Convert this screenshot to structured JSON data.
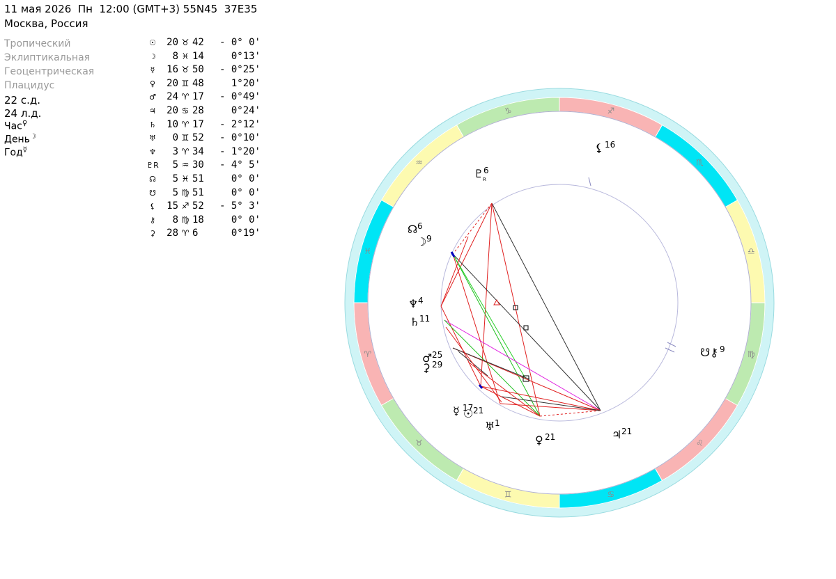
{
  "header": {
    "date_line": "11 мая 2026  Пн  12:00 (GMT+3) 55N45  37E35",
    "place": "Москва, Россия"
  },
  "settings": [
    "Тропический",
    "Эклиптикальная",
    "Геоцентрическая",
    "Плацидус"
  ],
  "days": [
    "22 с.д.",
    "24 л.д."
  ],
  "rulers": [
    {
      "label": "Час",
      "glyph": "♀"
    },
    {
      "label": "День",
      "glyph": "☽"
    },
    {
      "label": "Год",
      "glyph": "☿"
    }
  ],
  "planet_table": [
    {
      "glyph": "☉",
      "deg": "20",
      "sign": "♉",
      "min": "42",
      "lat": "- 0° 0'"
    },
    {
      "glyph": "☽",
      "deg": "8",
      "sign": "♓",
      "min": "14",
      "lat": "0°13'"
    },
    {
      "glyph": "☿",
      "deg": "16",
      "sign": "♉",
      "min": "50",
      "lat": "- 0°25'"
    },
    {
      "glyph": "♀",
      "deg": "20",
      "sign": "♊",
      "min": "48",
      "lat": "1°20'"
    },
    {
      "glyph": "♂",
      "deg": "24",
      "sign": "♈",
      "min": "17",
      "lat": "- 0°49'"
    },
    {
      "glyph": "♃",
      "deg": "20",
      "sign": "♋",
      "min": "28",
      "lat": "0°24'"
    },
    {
      "glyph": "♄",
      "deg": "10",
      "sign": "♈",
      "min": "17",
      "lat": "- 2°12'"
    },
    {
      "glyph": "♅",
      "deg": "0",
      "sign": "♊",
      "min": "52",
      "lat": "- 0°10'"
    },
    {
      "glyph": "♆",
      "deg": "3",
      "sign": "♈",
      "min": "34",
      "lat": "- 1°20'"
    },
    {
      "glyph": "♇R",
      "deg": "5",
      "sign": "♒",
      "min": "30",
      "lat": "- 4° 5'"
    },
    {
      "glyph": "☊",
      "deg": "5",
      "sign": "♓",
      "min": "51",
      "lat": "0° 0'"
    },
    {
      "glyph": "☋",
      "deg": "5",
      "sign": "♍",
      "min": "51",
      "lat": "0° 0'"
    },
    {
      "glyph": "⚸",
      "deg": "15",
      "sign": "♐",
      "min": "52",
      "lat": "- 5° 3'"
    },
    {
      "glyph": "⚷",
      "deg": "8",
      "sign": "♍",
      "min": "18",
      "lat": "0° 0'"
    },
    {
      "glyph": "⚳",
      "deg": "28",
      "sign": "♈",
      "min": "6",
      "lat": "0°19'"
    }
  ],
  "zodiac_wheel": {
    "signs": [
      "♈",
      "♉",
      "♊",
      "♋",
      "♌",
      "♍",
      "♎",
      "♏",
      "♐",
      "♑",
      "♒",
      "♓"
    ],
    "element_colors": [
      "#f9b4b4",
      "#bdeab0",
      "#fdfab0",
      "#00e5f5"
    ],
    "rim_color": "#cff4f6"
  },
  "chart_planets": [
    {
      "glyph": "♇",
      "num": "6",
      "sub": "R"
    },
    {
      "glyph": "☊",
      "num": "6",
      "sub": ""
    },
    {
      "glyph": "☽",
      "num": "9",
      "sub": ""
    },
    {
      "glyph": "♆",
      "num": "4",
      "sub": ""
    },
    {
      "glyph": "♄",
      "num": "11",
      "sub": ""
    },
    {
      "glyph": "♂",
      "num": "25",
      "sub": ""
    },
    {
      "glyph": "⚳",
      "num": "29",
      "sub": ""
    },
    {
      "glyph": "☿",
      "num": "17",
      "sub": ""
    },
    {
      "glyph": "☉",
      "num": "21",
      "sub": ""
    },
    {
      "glyph": "♅",
      "num": "1",
      "sub": ""
    },
    {
      "glyph": "♀",
      "num": "21",
      "sub": ""
    },
    {
      "glyph": "♃",
      "num": "21",
      "sub": ""
    },
    {
      "glyph": "☋⚷",
      "num": "9",
      "sub": ""
    },
    {
      "glyph": "⚸",
      "num": "16",
      "sub": ""
    }
  ]
}
